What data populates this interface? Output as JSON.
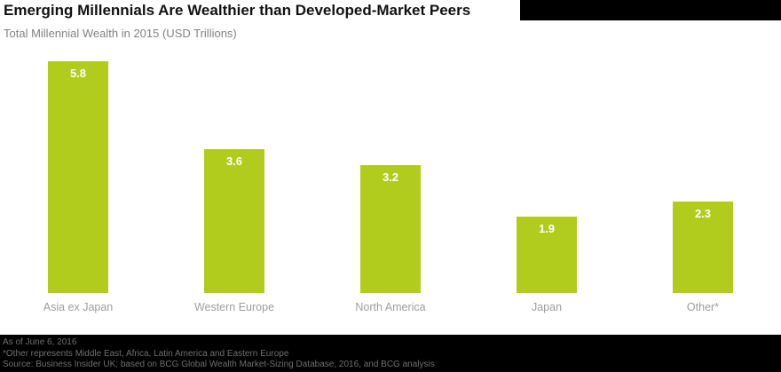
{
  "header": {
    "title": "Emerging Millennials Are Wealthier than Developed-Market Peers",
    "subtitle": "Total Millennial Wealth in 2015 (USD Trillions)"
  },
  "chart_data": {
    "type": "bar",
    "title": "Emerging Millennials Are Wealthier than Developed-Market Peers",
    "subtitle": "Total Millennial Wealth in 2015 (USD Trillions)",
    "categories": [
      "Asia ex Japan",
      "Western Europe",
      "North America",
      "Japan",
      "Other*"
    ],
    "values": [
      5.8,
      3.6,
      3.2,
      1.9,
      2.3
    ],
    "xlabel": "",
    "ylabel": "",
    "ylim": [
      0,
      6
    ],
    "grid": false,
    "legend": "none",
    "bar_color": "#b2cc1e",
    "value_label_color": "#ffffff",
    "category_label_color": "#9d9d9d"
  },
  "footer": {
    "line1": "As of June 6, 2016",
    "line2": "*Other represents Middle East, Africa, Latin America and Eastern Europe",
    "line3": "Source: Business Insider UK; based on BCG Global Wealth Market-Sizing Database, 2016, and BCG analysis"
  }
}
